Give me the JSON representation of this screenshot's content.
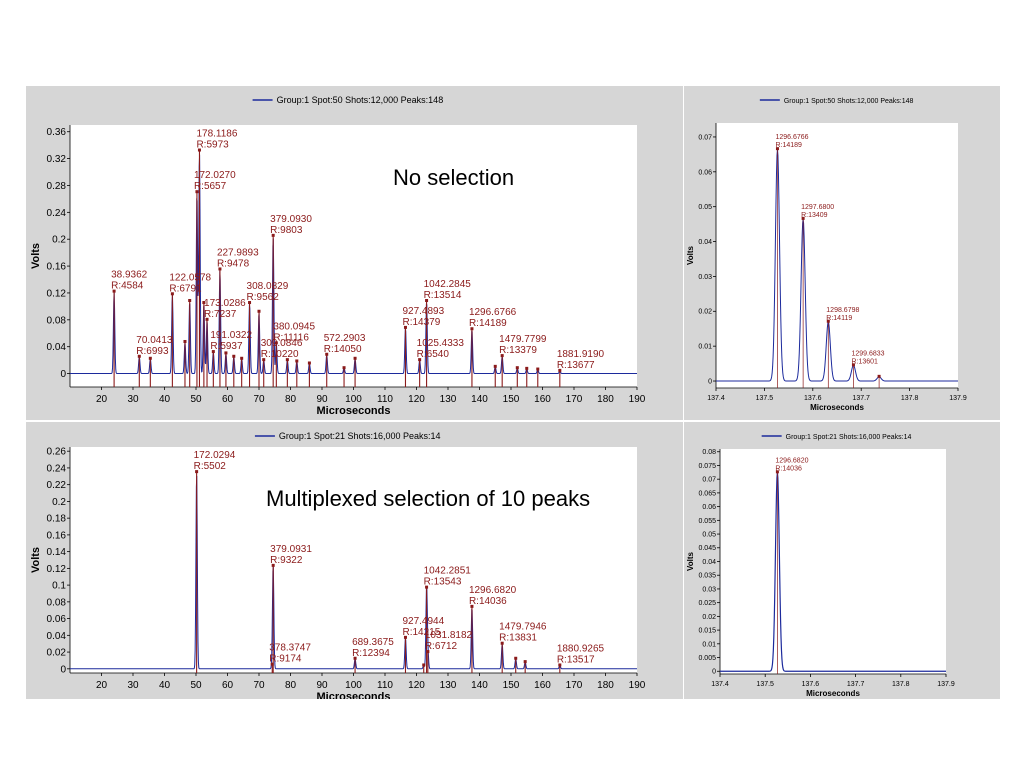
{
  "captions": {
    "top": "No selection",
    "bottom": "Multiplexed selection of 10 peaks"
  },
  "chart_data": [
    {
      "type": "line",
      "legend": "Group:1 Spot:50 Shots:12,000 Peaks:148",
      "xlabel": "Microseconds",
      "ylabel": "Volts",
      "xlim": [
        10,
        190
      ],
      "ylim": [
        -0.02,
        0.37
      ],
      "xticks": [
        20,
        30,
        40,
        50,
        60,
        70,
        80,
        90,
        100,
        110,
        120,
        130,
        140,
        150,
        160,
        170,
        180,
        190
      ],
      "yticks": [
        0,
        0.04,
        0.08,
        0.12,
        0.16,
        0.2,
        0.24,
        0.28,
        0.32,
        0.36
      ],
      "grid": false,
      "legend_position": "top",
      "line_color": "#1c2a9c",
      "marker_color": "#8b1a1a",
      "peaks": [
        {
          "x": 24,
          "y": 0.122,
          "label": [
            "38.9362",
            "R:4584"
          ]
        },
        {
          "x": 32,
          "y": 0.025,
          "label": [
            "70.0413",
            "R:6993"
          ]
        },
        {
          "x": 35.5,
          "y": 0.022
        },
        {
          "x": 42.5,
          "y": 0.118,
          "label": [
            "122.0578",
            "R:6791"
          ]
        },
        {
          "x": 46.5,
          "y": 0.047
        },
        {
          "x": 48,
          "y": 0.108
        },
        {
          "x": 50.3,
          "y": 0.27,
          "label": [
            "172.0270",
            "R:5657"
          ]
        },
        {
          "x": 51.1,
          "y": 0.332,
          "label": [
            "178.1186",
            "R:5973"
          ]
        },
        {
          "x": 52.5,
          "y": 0.105
        },
        {
          "x": 53.5,
          "y": 0.08,
          "label": [
            "173.0286",
            "R:7237"
          ]
        },
        {
          "x": 55.5,
          "y": 0.032,
          "label": [
            "191.0322",
            "R:5937"
          ]
        },
        {
          "x": 57.6,
          "y": 0.155,
          "label": [
            "227.9893",
            "R:9478"
          ]
        },
        {
          "x": 59.5,
          "y": 0.03
        },
        {
          "x": 62,
          "y": 0.025
        },
        {
          "x": 64.5,
          "y": 0.022
        },
        {
          "x": 67,
          "y": 0.105,
          "label": [
            "308.0829",
            "R:9562"
          ]
        },
        {
          "x": 70,
          "y": 0.092
        },
        {
          "x": 71.5,
          "y": 0.02,
          "label": [
            "309.0846",
            "R:10220"
          ]
        },
        {
          "x": 74.5,
          "y": 0.205,
          "label": [
            "379.0930",
            "R:9803"
          ]
        },
        {
          "x": 75.5,
          "y": 0.045,
          "label": [
            "380.0945",
            "R:11116"
          ]
        },
        {
          "x": 79,
          "y": 0.02
        },
        {
          "x": 82,
          "y": 0.018
        },
        {
          "x": 86,
          "y": 0.015
        },
        {
          "x": 91.5,
          "y": 0.028,
          "label": [
            "572.2903",
            "R:14050"
          ]
        },
        {
          "x": 97,
          "y": 0.008
        },
        {
          "x": 100.5,
          "y": 0.022
        },
        {
          "x": 116.5,
          "y": 0.068,
          "label": [
            "927.4893",
            "R:14379"
          ]
        },
        {
          "x": 123.2,
          "y": 0.108,
          "label": [
            "1042.2845",
            "R:13514"
          ]
        },
        {
          "x": 121,
          "y": 0.02,
          "label": [
            "1025.4333",
            "R:6540"
          ]
        },
        {
          "x": 137.6,
          "y": 0.066,
          "label": [
            "1296.6766",
            "R:14189"
          ]
        },
        {
          "x": 145,
          "y": 0.01
        },
        {
          "x": 147.2,
          "y": 0.026,
          "label": [
            "1479.7799",
            "R:13379"
          ]
        },
        {
          "x": 152,
          "y": 0.008
        },
        {
          "x": 155,
          "y": 0.007
        },
        {
          "x": 158.5,
          "y": 0.006
        },
        {
          "x": 165.5,
          "y": 0.004,
          "label": [
            "1881.9190",
            "R:13677"
          ]
        }
      ]
    },
    {
      "type": "line",
      "legend": "Group:1 Spot:50 Shots:12,000 Peaks:148",
      "xlabel": "Microseconds",
      "ylabel": "Volts",
      "xlim": [
        137.4,
        137.9
      ],
      "ylim": [
        -0.002,
        0.074
      ],
      "xticks": [
        137.4,
        137.5,
        137.6,
        137.7,
        137.8,
        137.9
      ],
      "yticks": [
        0,
        0.01,
        0.02,
        0.03,
        0.04,
        0.05,
        0.06,
        0.07
      ],
      "grid": false,
      "legend_position": "top",
      "line_color": "#1c2a9c",
      "marker_color": "#8b1a1a",
      "peaks": [
        {
          "x": 137.527,
          "y": 0.0665,
          "label": [
            "1296.6766",
            "R:14189"
          ]
        },
        {
          "x": 137.58,
          "y": 0.0465,
          "label": [
            "1297.6800",
            "R:13409"
          ]
        },
        {
          "x": 137.632,
          "y": 0.017,
          "label": [
            "1298.6798",
            "R:14119"
          ]
        },
        {
          "x": 137.684,
          "y": 0.0045,
          "label": [
            "1299.6833",
            "R:13601"
          ]
        },
        {
          "x": 137.737,
          "y": 0.0012
        }
      ]
    },
    {
      "type": "line",
      "legend": "Group:1 Spot:21 Shots:16,000 Peaks:14",
      "xlabel": "Microseconds",
      "ylabel": "Volts",
      "xlim": [
        10,
        190
      ],
      "ylim": [
        -0.005,
        0.265
      ],
      "xticks": [
        20,
        30,
        40,
        50,
        60,
        70,
        80,
        90,
        100,
        110,
        120,
        130,
        140,
        150,
        160,
        170,
        180,
        190
      ],
      "yticks": [
        0,
        0.02,
        0.04,
        0.06,
        0.08,
        0.1,
        0.12,
        0.14,
        0.16,
        0.18,
        0.2,
        0.22,
        0.24,
        0.26
      ],
      "grid": false,
      "legend_position": "top",
      "line_color": "#1c2a9c",
      "marker_color": "#8b1a1a",
      "peaks": [
        {
          "x": 50.2,
          "y": 0.235,
          "label": [
            "172.0294",
            "R:5502"
          ]
        },
        {
          "x": 74.5,
          "y": 0.123,
          "label": [
            "379.0931",
            "R:9322"
          ]
        },
        {
          "x": 74.2,
          "y": 0.005,
          "label": [
            "378.3747",
            "R:9174"
          ]
        },
        {
          "x": 100.5,
          "y": 0.012,
          "label": [
            "689.3675",
            "R:12394"
          ]
        },
        {
          "x": 116.5,
          "y": 0.037,
          "label": [
            "927.4944",
            "R:14215"
          ]
        },
        {
          "x": 122.3,
          "y": 0.004
        },
        {
          "x": 123.2,
          "y": 0.097,
          "label": [
            "1042.2851",
            "R:13543"
          ]
        },
        {
          "x": 123.6,
          "y": 0.02,
          "label": [
            "1031.8182",
            "R:6712"
          ]
        },
        {
          "x": 137.6,
          "y": 0.074,
          "label": [
            "1296.6820",
            "R:14036"
          ]
        },
        {
          "x": 147.2,
          "y": 0.03,
          "label": [
            "1479.7946",
            "R:13831"
          ]
        },
        {
          "x": 151.5,
          "y": 0.012
        },
        {
          "x": 154.5,
          "y": 0.008
        },
        {
          "x": 165.5,
          "y": 0.004,
          "label": [
            "1880.9265",
            "R:13517"
          ]
        }
      ]
    },
    {
      "type": "line",
      "legend": "Group:1 Spot:21 Shots:16,000 Peaks:14",
      "xlabel": "Microseconds",
      "ylabel": "Volts",
      "xlim": [
        137.4,
        137.9
      ],
      "ylim": [
        -0.001,
        0.081
      ],
      "xticks": [
        137.4,
        137.5,
        137.6,
        137.7,
        137.8,
        137.9
      ],
      "yticks": [
        0,
        0.005,
        0.01,
        0.015,
        0.02,
        0.025,
        0.03,
        0.035,
        0.04,
        0.045,
        0.05,
        0.055,
        0.06,
        0.065,
        0.07,
        0.075,
        0.08
      ],
      "grid": false,
      "legend_position": "top",
      "line_color": "#1c2a9c",
      "marker_color": "#8b1a1a",
      "peaks": [
        {
          "x": 137.527,
          "y": 0.0725,
          "label": [
            "1296.6820",
            "R:14036"
          ]
        }
      ]
    }
  ]
}
